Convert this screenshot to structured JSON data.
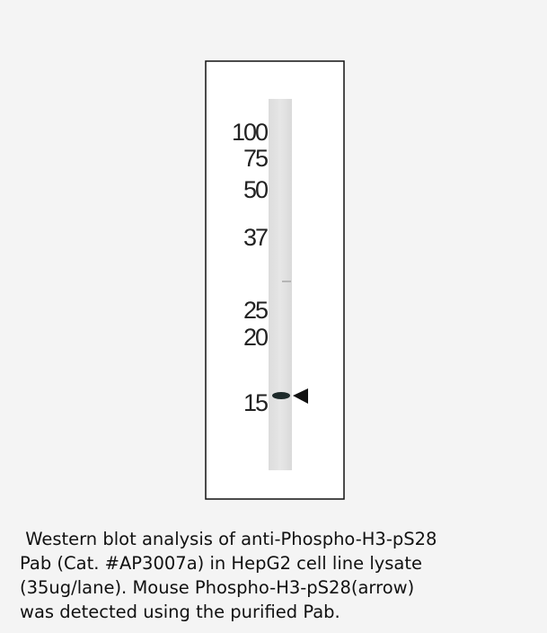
{
  "figure": {
    "markers": [
      "100",
      "75",
      "50",
      "37",
      "25",
      "20",
      "15"
    ]
  },
  "caption": {
    "lines": [
      " Western blot analysis of anti-Phospho-H3-pS28",
      "Pab (Cat. #AP3007a) in HepG2 cell line lysate",
      "(35ug/lane). Mouse Phospho-H3-pS28(arrow)",
      "was detected using the purified Pab."
    ]
  }
}
